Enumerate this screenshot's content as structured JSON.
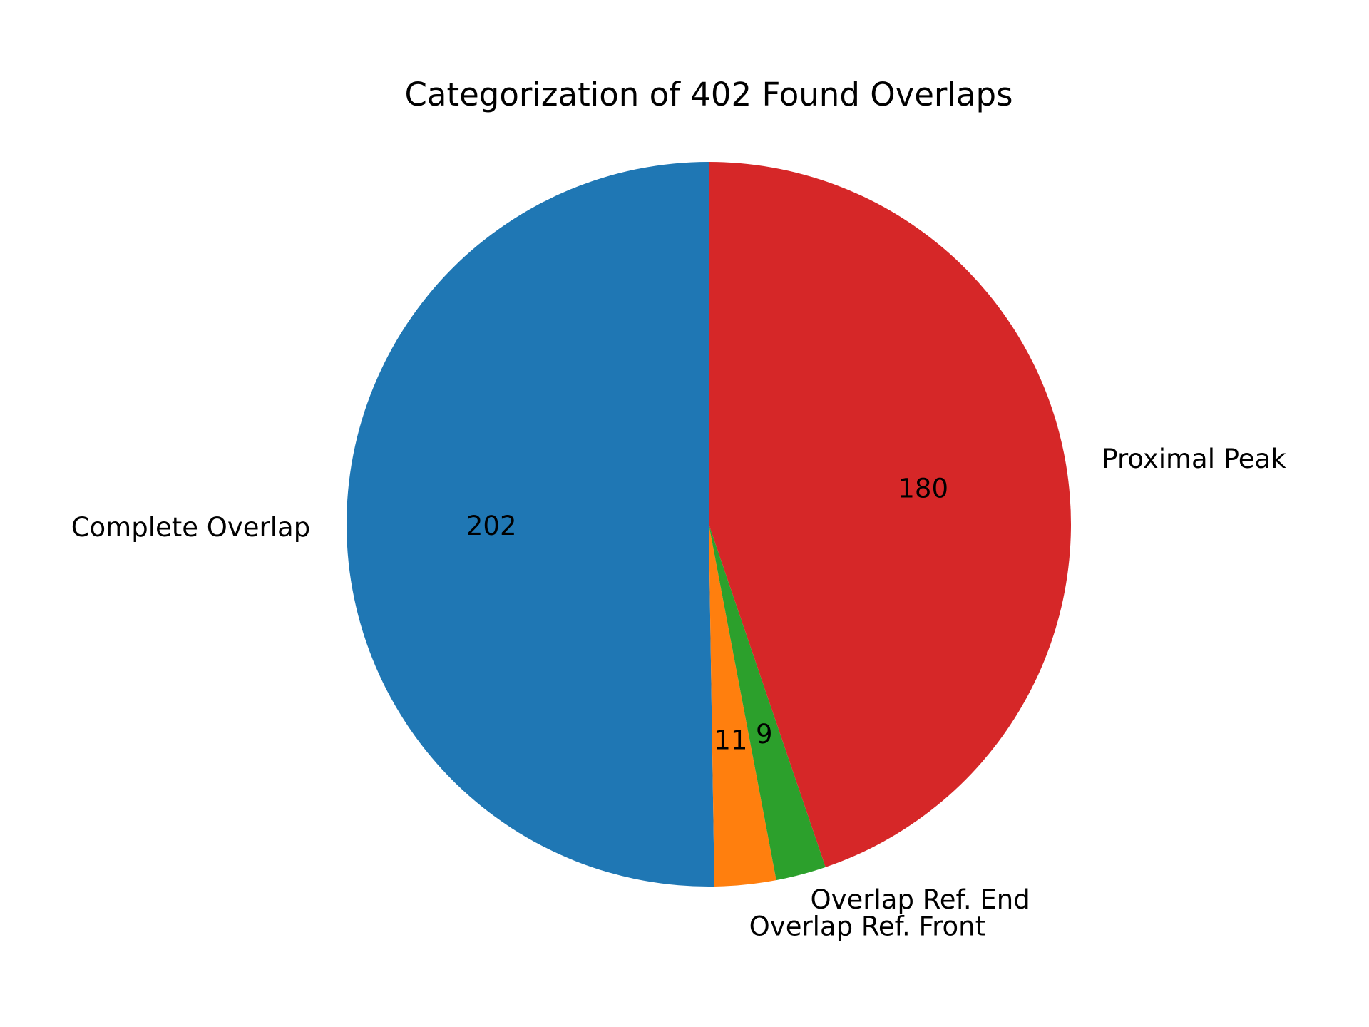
{
  "chart_data": {
    "type": "pie",
    "title": "Categorization of 402 Found Overlaps",
    "start_angle_deg": 90,
    "direction": "counterclockwise",
    "slices": [
      {
        "label": "Complete Overlap",
        "value": 202,
        "color": "#1f77b4"
      },
      {
        "label": "Overlap Ref. Front",
        "value": 11,
        "color": "#ff7f0e"
      },
      {
        "label": "Overlap Ref. End",
        "value": 9,
        "color": "#2ca02c"
      },
      {
        "label": "Proximal Peak",
        "value": 180,
        "color": "#d62728"
      }
    ]
  }
}
